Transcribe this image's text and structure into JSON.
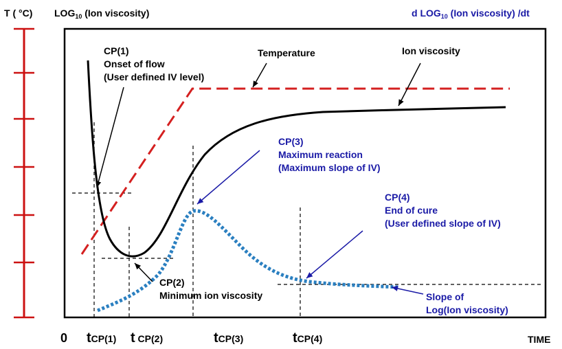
{
  "axes": {
    "temp_axis_label": "T ( °C)",
    "log_label_prefix": "LOG",
    "log_label_sub": "10",
    "log_label_suffix": " (Ion viscosity)",
    "deriv_label_prefix": "d LOG",
    "deriv_label_sub": "10",
    "deriv_label_suffix": " (Ion viscosity) /dt",
    "origin_label": "0",
    "time_label": "TIME"
  },
  "time_ticks": [
    {
      "t": "t",
      "sub": "CP(1)"
    },
    {
      "t": "t",
      "sub": " CP(2)"
    },
    {
      "t": "t",
      "sub": "CP(3)"
    },
    {
      "t": "t",
      "sub": "CP(4)"
    }
  ],
  "curves": {
    "temperature": "Temperature",
    "ion_viscosity": "Ion viscosity"
  },
  "annotations": {
    "cp1": [
      "CP(1)",
      "Onset of flow",
      "(User defined IV level)"
    ],
    "cp2": [
      "CP(2)",
      "Minimum ion viscosity"
    ],
    "cp3": [
      "CP(3)",
      "Maximum reaction",
      "(Maximum slope of IV)"
    ],
    "cp4": [
      "CP(4)",
      "End of cure",
      "(User defined slope of IV)"
    ],
    "slope": [
      "Slope of",
      "Log(Ion viscosity)"
    ]
  },
  "colors": {
    "temperature": "#d42020",
    "axis_red": "#cc1111",
    "derivative": "#2a7fc0",
    "blue_text": "#1a1aa6",
    "black": "#000000"
  }
}
